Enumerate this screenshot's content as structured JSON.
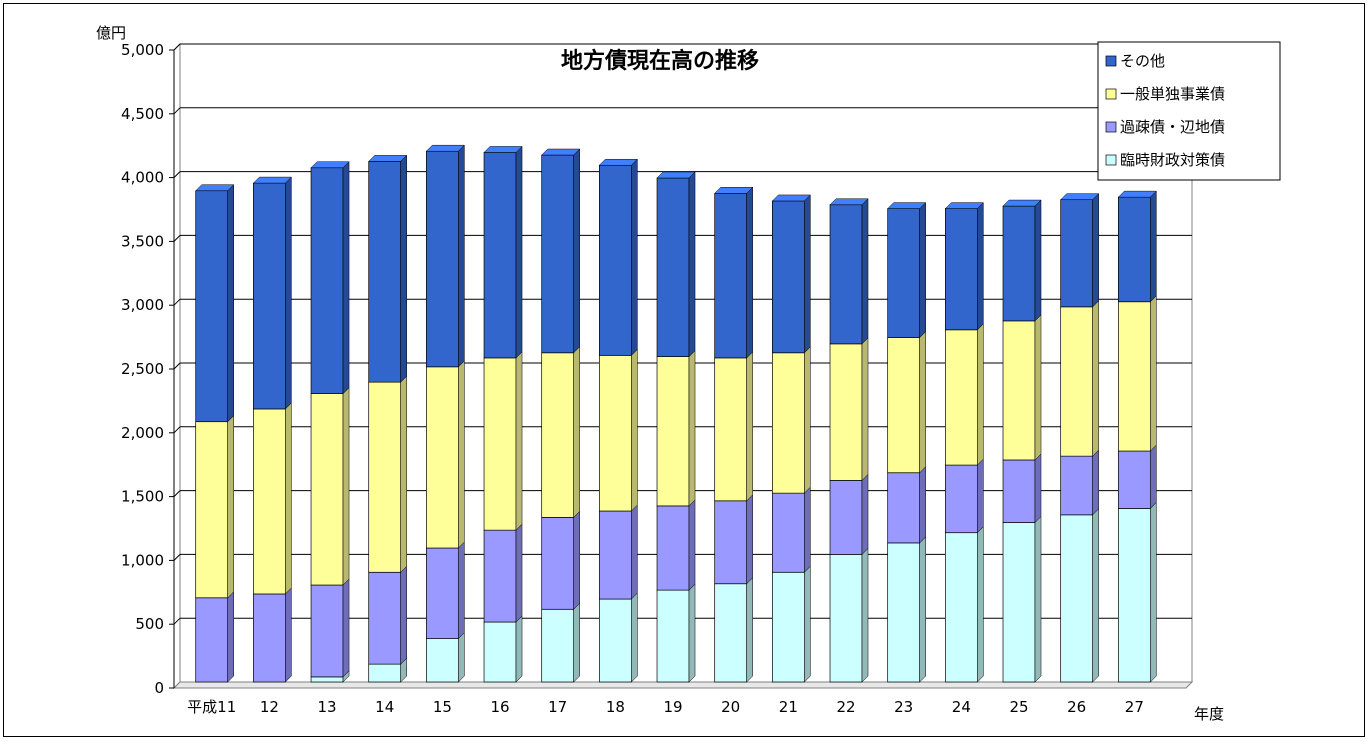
{
  "chart_data": {
    "type": "bar",
    "stacked": true,
    "title": "地方債現在高の推移",
    "ylabel": "億円",
    "xlabel": "年度",
    "ylim": [
      0,
      5000
    ],
    "yticks": [
      0,
      500,
      1000,
      1500,
      2000,
      2500,
      3000,
      3500,
      4000,
      4500,
      5000
    ],
    "ytick_labels": [
      "0",
      "500",
      "1,000",
      "1,500",
      "2,000",
      "2,500",
      "3,000",
      "3,500",
      "4,000",
      "4,500",
      "5,000"
    ],
    "categories": [
      "平成11",
      "12",
      "13",
      "14",
      "15",
      "16",
      "17",
      "18",
      "19",
      "20",
      "21",
      "22",
      "23",
      "24",
      "25",
      "26",
      "27"
    ],
    "legend_position": "top-right",
    "grid": true,
    "series": [
      {
        "name": "臨時財政対策債",
        "color": "#ccffff",
        "values": [
          0,
          0,
          40,
          140,
          340,
          470,
          570,
          650,
          720,
          770,
          860,
          1000,
          1090,
          1170,
          1250,
          1310,
          1360
        ]
      },
      {
        "name": "過疎債・辺地債",
        "color": "#9999ff",
        "values": [
          660,
          690,
          720,
          720,
          710,
          720,
          720,
          690,
          660,
          650,
          620,
          580,
          550,
          530,
          490,
          460,
          450
        ]
      },
      {
        "name": "一般単独事業債",
        "color": "#ffff99",
        "values": [
          1380,
          1450,
          1500,
          1490,
          1420,
          1350,
          1290,
          1220,
          1170,
          1120,
          1100,
          1070,
          1060,
          1060,
          1090,
          1170,
          1170
        ]
      },
      {
        "name": "その他",
        "color": "#3366cc",
        "values": [
          1810,
          1770,
          1770,
          1730,
          1690,
          1610,
          1550,
          1490,
          1400,
          1290,
          1190,
          1090,
          1010,
          950,
          900,
          840,
          820
        ]
      }
    ]
  }
}
